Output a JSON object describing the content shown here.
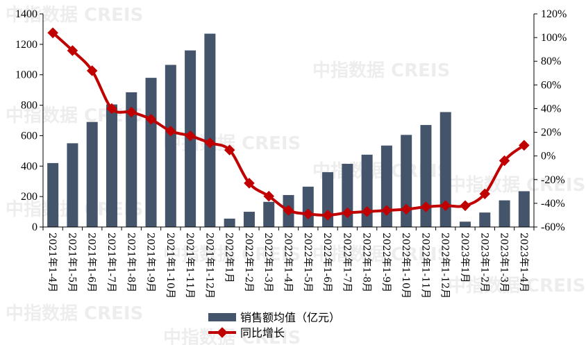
{
  "watermark": "中指数据 CREIS",
  "chart_data": {
    "type": "bar+line",
    "categories": [
      "2021年1-4月",
      "2021年1-5月",
      "2021年1-6月",
      "2021年1-7月",
      "2021年1-8月",
      "2021年1-9月",
      "2021年1-10月",
      "2021年1-11月",
      "2021年1-12月",
      "2022年1月",
      "2022年1-2月",
      "2022年1-3月",
      "2022年1-4月",
      "2022年1-5月",
      "2022年1-6月",
      "2022年1-7月",
      "2022年1-8月",
      "2022年1-9月",
      "2022年1-10月",
      "2022年1-11月",
      "2022年1-12月",
      "2023年1月",
      "2023年1-2月",
      "2023年1-3月",
      "2023年1-4月"
    ],
    "series": [
      {
        "name": "销售额均值（亿元）",
        "type": "bar",
        "axis": "left",
        "color": "#44546a",
        "values": [
          420,
          550,
          690,
          805,
          885,
          980,
          1065,
          1160,
          1270,
          55,
          100,
          165,
          210,
          265,
          360,
          415,
          475,
          535,
          605,
          670,
          755,
          35,
          95,
          175,
          235
        ]
      },
      {
        "name": "同比增长",
        "type": "line",
        "axis": "right",
        "color": "#c00000",
        "values": [
          104,
          89,
          72,
          40,
          37,
          31,
          21,
          17,
          11,
          5,
          -23,
          -34,
          -46,
          -49,
          -50,
          -48,
          -47,
          -46,
          -45,
          -43,
          -42,
          -42,
          -32,
          -4,
          9
        ]
      }
    ],
    "y_left": {
      "min": 0,
      "max": 1400,
      "step": 200
    },
    "y_right": {
      "min": -60,
      "max": 120,
      "step": 20,
      "suffix": "%"
    },
    "grid": false,
    "legend_position": "bottom-center"
  }
}
